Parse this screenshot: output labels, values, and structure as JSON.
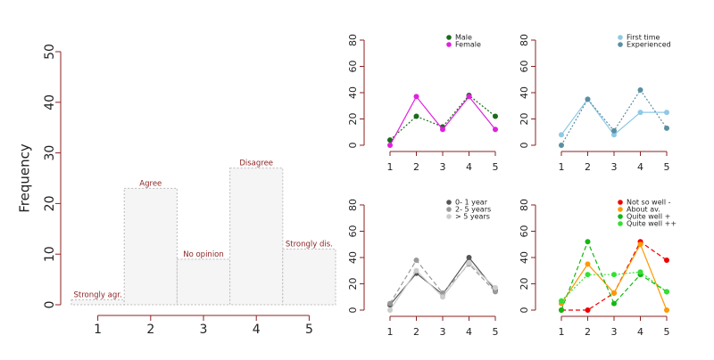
{
  "chart_data": [
    {
      "type": "bar",
      "ylabel": "Frequency",
      "categories": [
        "1",
        "2",
        "3",
        "4",
        "5"
      ],
      "values": [
        1,
        23,
        9,
        27,
        11
      ],
      "bar_labels": [
        "Strongly agr.",
        "Agree",
        "No opinion",
        "Disagree",
        "Strongly dis."
      ],
      "ylim": [
        0,
        50
      ],
      "yticks": [
        0,
        10,
        20,
        30,
        40,
        50
      ],
      "bar_fill": "#f5f5f5",
      "bar_border": "#bbbbbb",
      "label_color": "#8b2222",
      "axis_color": "#8b2222"
    },
    {
      "type": "line",
      "categories": [
        "1",
        "2",
        "3",
        "4",
        "5"
      ],
      "ylim": [
        0,
        80
      ],
      "yticks": [
        0,
        20,
        40,
        60,
        80
      ],
      "legend_position": "top-right",
      "series": [
        {
          "name": "Male",
          "values": [
            4,
            22,
            14,
            38,
            22
          ],
          "color": "#1a6b1a",
          "dash": "dotted"
        },
        {
          "name": "Female",
          "values": [
            0,
            37,
            12,
            37,
            12
          ],
          "color": "#e020e0",
          "dash": "solid"
        }
      ]
    },
    {
      "type": "line",
      "categories": [
        "1",
        "2",
        "3",
        "4",
        "5"
      ],
      "ylim": [
        0,
        80
      ],
      "yticks": [
        0,
        20,
        40,
        60,
        80
      ],
      "legend_position": "top-right",
      "series": [
        {
          "name": "First time",
          "values": [
            8,
            35,
            8,
            25,
            25
          ],
          "color": "#8ec8e6",
          "dash": "solid"
        },
        {
          "name": "Experienced",
          "values": [
            0,
            35,
            11,
            42,
            13
          ],
          "color": "#5a8fa3",
          "dash": "dotted"
        }
      ]
    },
    {
      "type": "line",
      "categories": [
        "1",
        "2",
        "3",
        "4",
        "5"
      ],
      "ylim": [
        0,
        80
      ],
      "yticks": [
        0,
        20,
        40,
        60,
        80
      ],
      "legend_position": "top-right",
      "series": [
        {
          "name": "0- 1 year",
          "values": [
            4,
            28,
            12,
            40,
            15
          ],
          "color": "#555555",
          "dash": "solid"
        },
        {
          "name": "2- 5 years",
          "values": [
            5,
            38,
            13,
            35,
            14
          ],
          "color": "#999999",
          "dash": "dashed"
        },
        {
          "name": "> 5 years",
          "values": [
            0,
            30,
            10,
            36,
            17
          ],
          "color": "#cccccc",
          "dash": "solid"
        }
      ]
    },
    {
      "type": "line",
      "categories": [
        "1",
        "2",
        "3",
        "4",
        "5"
      ],
      "ylim": [
        0,
        80
      ],
      "yticks": [
        0,
        20,
        40,
        60,
        80
      ],
      "legend_position": "top-right",
      "series": [
        {
          "name": "Not so well -",
          "values": [
            0,
            0,
            13,
            52,
            38
          ],
          "color": "#ee0000",
          "dash": "dashed"
        },
        {
          "name": "About av.",
          "values": [
            5,
            35,
            13,
            50,
            0
          ],
          "color": "#ff9900",
          "dash": "solid"
        },
        {
          "name": "Quite well +",
          "values": [
            0,
            52,
            5,
            27,
            14
          ],
          "color": "#12b812",
          "dash": "dashed"
        },
        {
          "name": "Quite well ++",
          "values": [
            7,
            27,
            27,
            29,
            14
          ],
          "color": "#33e033",
          "dash": "dotted"
        }
      ]
    }
  ]
}
